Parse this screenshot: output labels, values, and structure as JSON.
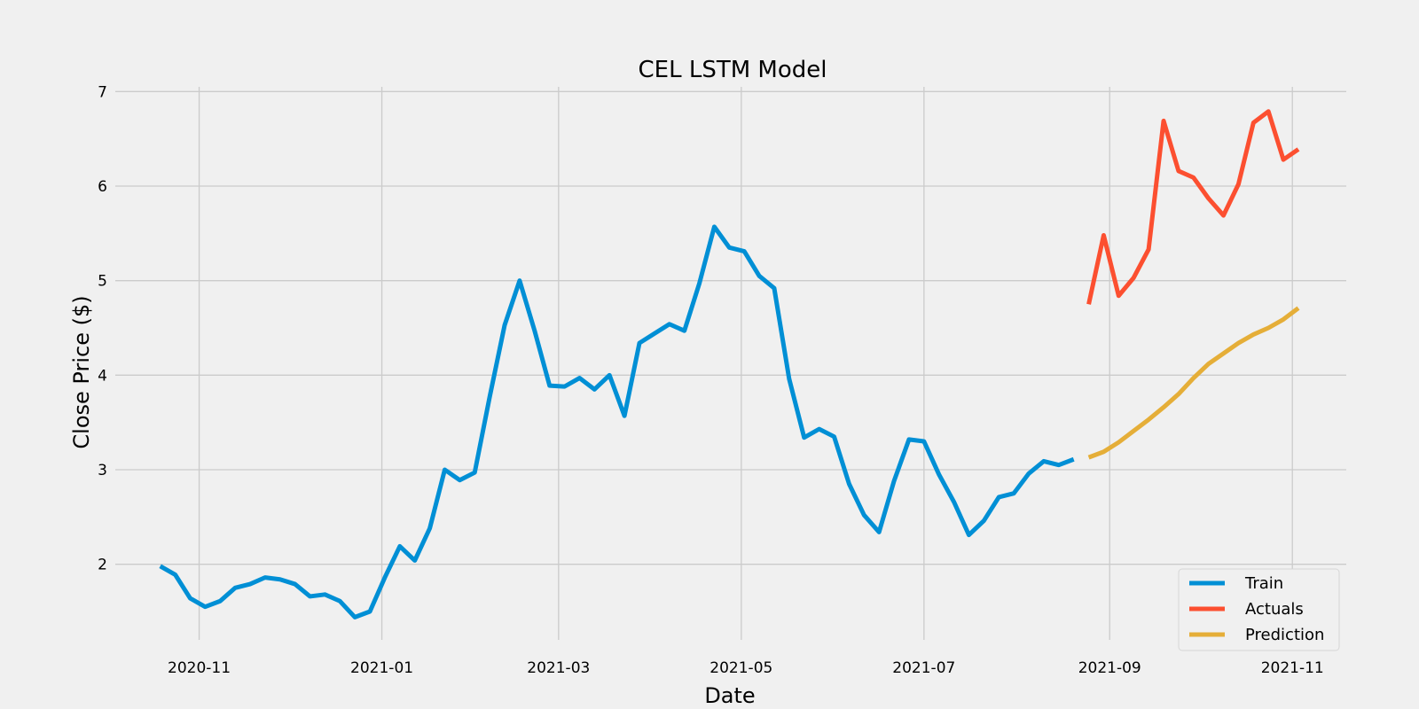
{
  "chart_data": {
    "type": "line",
    "title": "CEL LSTM Model",
    "xlabel": "Date",
    "ylabel": "Close Price ($)",
    "ylim": [
      1.2,
      7.05
    ],
    "xlim": [
      "2020-10-04",
      "2021-11-19"
    ],
    "grid": true,
    "legend_position": "bottom-right",
    "x_ticks": [
      "2020-11-01",
      "2021-01-01",
      "2021-03-01",
      "2021-05-01",
      "2021-07-01",
      "2021-09-01",
      "2021-11-01"
    ],
    "x_tick_labels": [
      "2020-11",
      "2021-01",
      "2021-03",
      "2021-05",
      "2021-07",
      "2021-09",
      "2021-11"
    ],
    "y_ticks": [
      2,
      3,
      4,
      5,
      6,
      7
    ],
    "series": [
      {
        "name": "Train",
        "color": "#008fd5",
        "points": [
          [
            "2020-10-19",
            1.98
          ],
          [
            "2020-10-24",
            1.89
          ],
          [
            "2020-10-29",
            1.64
          ],
          [
            "2020-11-03",
            1.55
          ],
          [
            "2020-11-08",
            1.61
          ],
          [
            "2020-11-13",
            1.75
          ],
          [
            "2020-11-18",
            1.79
          ],
          [
            "2020-11-23",
            1.86
          ],
          [
            "2020-11-28",
            1.84
          ],
          [
            "2020-12-03",
            1.79
          ],
          [
            "2020-12-08",
            1.66
          ],
          [
            "2020-12-13",
            1.68
          ],
          [
            "2020-12-18",
            1.61
          ],
          [
            "2020-12-23",
            1.44
          ],
          [
            "2020-12-28",
            1.5
          ],
          [
            "2021-01-02",
            1.86
          ],
          [
            "2021-01-07",
            2.19
          ],
          [
            "2021-01-12",
            2.04
          ],
          [
            "2021-01-17",
            2.38
          ],
          [
            "2021-01-22",
            3.0
          ],
          [
            "2021-01-27",
            2.89
          ],
          [
            "2021-02-01",
            2.97
          ],
          [
            "2021-02-06",
            3.77
          ],
          [
            "2021-02-11",
            4.53
          ],
          [
            "2021-02-16",
            5.0
          ],
          [
            "2021-02-21",
            4.47
          ],
          [
            "2021-02-26",
            3.89
          ],
          [
            "2021-03-03",
            3.88
          ],
          [
            "2021-03-08",
            3.97
          ],
          [
            "2021-03-13",
            3.85
          ],
          [
            "2021-03-18",
            4.0
          ],
          [
            "2021-03-23",
            3.57
          ],
          [
            "2021-03-28",
            4.34
          ],
          [
            "2021-04-02",
            4.44
          ],
          [
            "2021-04-07",
            4.54
          ],
          [
            "2021-04-12",
            4.47
          ],
          [
            "2021-04-17",
            4.97
          ],
          [
            "2021-04-22",
            5.57
          ],
          [
            "2021-04-27",
            5.35
          ],
          [
            "2021-05-02",
            5.31
          ],
          [
            "2021-05-07",
            5.05
          ],
          [
            "2021-05-12",
            4.92
          ],
          [
            "2021-05-17",
            3.96
          ],
          [
            "2021-05-22",
            3.34
          ],
          [
            "2021-05-27",
            3.43
          ],
          [
            "2021-06-01",
            3.35
          ],
          [
            "2021-06-06",
            2.85
          ],
          [
            "2021-06-11",
            2.52
          ],
          [
            "2021-06-16",
            2.34
          ],
          [
            "2021-06-21",
            2.88
          ],
          [
            "2021-06-26",
            3.32
          ],
          [
            "2021-07-01",
            3.3
          ],
          [
            "2021-07-06",
            2.95
          ],
          [
            "2021-07-11",
            2.66
          ],
          [
            "2021-07-16",
            2.31
          ],
          [
            "2021-07-21",
            2.46
          ],
          [
            "2021-07-26",
            2.71
          ],
          [
            "2021-07-31",
            2.75
          ],
          [
            "2021-08-05",
            2.96
          ],
          [
            "2021-08-10",
            3.09
          ],
          [
            "2021-08-15",
            3.05
          ],
          [
            "2021-08-20",
            3.11
          ]
        ]
      },
      {
        "name": "Actuals",
        "color": "#fc4f30",
        "points": [
          [
            "2021-08-25",
            4.75
          ],
          [
            "2021-08-30",
            5.48
          ],
          [
            "2021-09-04",
            4.84
          ],
          [
            "2021-09-09",
            5.03
          ],
          [
            "2021-09-14",
            5.33
          ],
          [
            "2021-09-19",
            6.69
          ],
          [
            "2021-09-24",
            6.16
          ],
          [
            "2021-09-29",
            6.09
          ],
          [
            "2021-10-04",
            5.87
          ],
          [
            "2021-10-09",
            5.69
          ],
          [
            "2021-10-14",
            6.02
          ],
          [
            "2021-10-19",
            6.67
          ],
          [
            "2021-10-24",
            6.79
          ],
          [
            "2021-10-29",
            6.28
          ],
          [
            "2021-11-03",
            6.39
          ]
        ]
      },
      {
        "name": "Prediction",
        "color": "#e5ae38",
        "points": [
          [
            "2021-08-25",
            3.13
          ],
          [
            "2021-08-30",
            3.19
          ],
          [
            "2021-09-04",
            3.29
          ],
          [
            "2021-09-09",
            3.41
          ],
          [
            "2021-09-14",
            3.53
          ],
          [
            "2021-09-19",
            3.66
          ],
          [
            "2021-09-24",
            3.8
          ],
          [
            "2021-09-29",
            3.97
          ],
          [
            "2021-10-04",
            4.12
          ],
          [
            "2021-10-09",
            4.23
          ],
          [
            "2021-10-14",
            4.34
          ],
          [
            "2021-10-19",
            4.43
          ],
          [
            "2021-10-24",
            4.5
          ],
          [
            "2021-10-29",
            4.59
          ],
          [
            "2021-11-03",
            4.71
          ]
        ]
      }
    ]
  }
}
